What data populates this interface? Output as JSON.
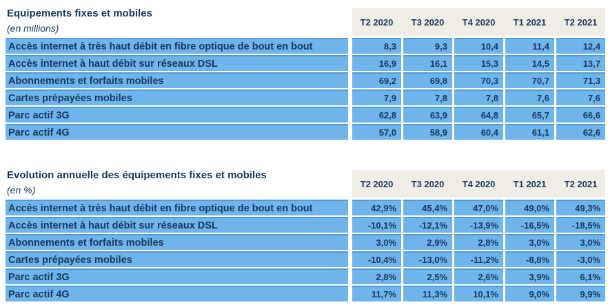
{
  "colors": {
    "cell_blue": "#6FB5EC",
    "row_border_blue": "#4E9AD4",
    "header_beige": "#F0EDE6",
    "text_navy": "#17375D",
    "page_bg": "#FFFFFF"
  },
  "chart_data": [
    {
      "type": "table",
      "title": "Equipements fixes et mobiles",
      "subtitle": "(en millions)",
      "columns": [
        "T2 2020",
        "T3 2020",
        "T4 2020",
        "T1 2021",
        "T2 2021"
      ],
      "rows": [
        {
          "label": "Accès internet à très haut débit en fibre optique de bout en bout",
          "values": [
            "8,3",
            "9,3",
            "10,4",
            "11,4",
            "12,4"
          ]
        },
        {
          "label": "Accès internet à haut débit sur réseaux DSL",
          "values": [
            "16,9",
            "16,1",
            "15,3",
            "14,5",
            "13,7"
          ]
        },
        {
          "label": "Abonnements et forfaits mobiles",
          "values": [
            "69,2",
            "69,8",
            "70,3",
            "70,7",
            "71,3"
          ]
        },
        {
          "label": "Cartes prépayées mobiles",
          "values": [
            "7,9",
            "7,8",
            "7,8",
            "7,6",
            "7,6"
          ]
        },
        {
          "label": "Parc actif 3G",
          "values": [
            "62,8",
            "63,9",
            "64,8",
            "65,7",
            "66,6"
          ]
        },
        {
          "label": "Parc actif 4G",
          "values": [
            "57,0",
            "58,9",
            "60,4",
            "61,1",
            "62,6"
          ]
        }
      ]
    },
    {
      "type": "table",
      "title": "Evolution annuelle des équipements fixes et mobiles",
      "subtitle": "(en %)",
      "columns": [
        "T2 2020",
        "T3 2020",
        "T4 2020",
        "T1 2021",
        "T2 2021"
      ],
      "rows": [
        {
          "label": "Accès internet à très haut débit en fibre optique de bout en bout",
          "values": [
            "42,9%",
            "45,4%",
            "47,0%",
            "49,0%",
            "49,3%"
          ]
        },
        {
          "label": "Accès internet à haut débit sur réseaux DSL",
          "values": [
            "-10,1%",
            "-12,1%",
            "-13,9%",
            "-16,5%",
            "-18,5%"
          ]
        },
        {
          "label": "Abonnements et forfaits mobiles",
          "values": [
            "3,0%",
            "2,9%",
            "2,8%",
            "3,0%",
            "3,0%"
          ]
        },
        {
          "label": "Cartes prépayées mobiles",
          "values": [
            "-10,4%",
            "-13,0%",
            "-11,2%",
            "-8,8%",
            "-3,0%"
          ]
        },
        {
          "label": "Parc actif 3G",
          "values": [
            "2,8%",
            "2,5%",
            "2,6%",
            "3,9%",
            "6,1%"
          ]
        },
        {
          "label": "Parc actif 4G",
          "values": [
            "11,7%",
            "11,3%",
            "10,1%",
            "9,0%",
            "9,9%"
          ]
        }
      ]
    }
  ]
}
